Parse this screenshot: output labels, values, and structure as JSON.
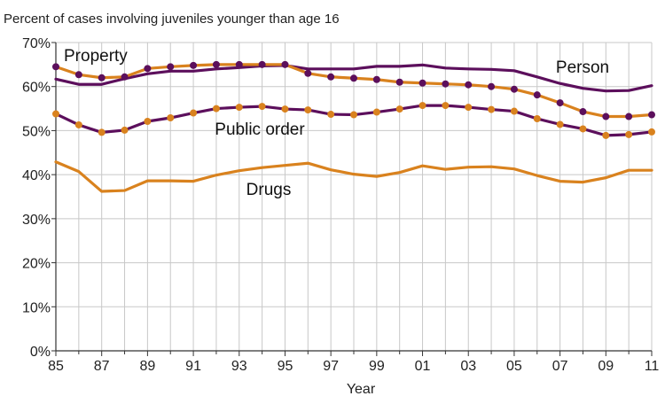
{
  "chart_data": {
    "type": "line",
    "title": "Percent of cases involving juveniles younger than age 16",
    "xlabel": "Year",
    "ylabel": "",
    "x": [
      1985,
      1986,
      1987,
      1988,
      1989,
      1990,
      1991,
      1992,
      1993,
      1994,
      1995,
      1996,
      1997,
      1998,
      1999,
      2000,
      2001,
      2002,
      2003,
      2004,
      2005,
      2006,
      2007,
      2008,
      2009,
      2010,
      2011
    ],
    "x_tick_labels": [
      "85",
      "87",
      "89",
      "91",
      "93",
      "95",
      "97",
      "99",
      "01",
      "03",
      "05",
      "07",
      "09",
      "11"
    ],
    "y_tick_labels": [
      "0%",
      "10%",
      "20%",
      "30%",
      "40%",
      "50%",
      "60%",
      "70%"
    ],
    "ylim": [
      0,
      70
    ],
    "grid": true,
    "colors": {
      "purple": "#5c0f5c",
      "orange": "#d9821e",
      "grid": "#c8c8c8"
    },
    "series": [
      {
        "name": "Person",
        "color": "#5c0f5c",
        "markers": false,
        "values": [
          61.7,
          60.5,
          60.5,
          61.8,
          62.9,
          63.5,
          63.5,
          64.0,
          64.3,
          64.7,
          64.8,
          64.0,
          64.0,
          64.0,
          64.6,
          64.6,
          64.9,
          64.2,
          64.0,
          63.9,
          63.6,
          62.2,
          60.7,
          59.6,
          59.0,
          59.1,
          60.2
        ]
      },
      {
        "name": "Property",
        "color": "#d9821e",
        "marker_color": "#5c0f5c",
        "markers": true,
        "values": [
          64.5,
          62.7,
          62.0,
          62.2,
          64.1,
          64.5,
          64.8,
          65.0,
          65.0,
          65.0,
          65.0,
          63.0,
          62.2,
          61.9,
          61.6,
          61.0,
          60.8,
          60.6,
          60.4,
          60.0,
          59.4,
          58.1,
          56.3,
          54.3,
          53.2,
          53.2,
          53.6
        ]
      },
      {
        "name": "Public order",
        "color": "#5c0f5c",
        "marker_color": "#d9821e",
        "markers": true,
        "values": [
          53.8,
          51.3,
          49.6,
          50.1,
          52.1,
          52.9,
          54.0,
          55.0,
          55.3,
          55.5,
          54.9,
          54.7,
          53.7,
          53.6,
          54.2,
          54.9,
          55.7,
          55.7,
          55.3,
          54.8,
          54.4,
          52.7,
          51.4,
          50.4,
          48.9,
          49.1,
          49.7
        ]
      },
      {
        "name": "Drugs",
        "color": "#d9821e",
        "markers": false,
        "values": [
          42.9,
          40.7,
          36.2,
          36.4,
          38.6,
          38.6,
          38.5,
          39.9,
          40.9,
          41.6,
          42.1,
          42.6,
          41.1,
          40.1,
          39.6,
          40.5,
          42.0,
          41.2,
          41.7,
          41.8,
          41.3,
          39.8,
          38.5,
          38.3,
          39.3,
          41.0,
          41.0
        ]
      }
    ]
  }
}
